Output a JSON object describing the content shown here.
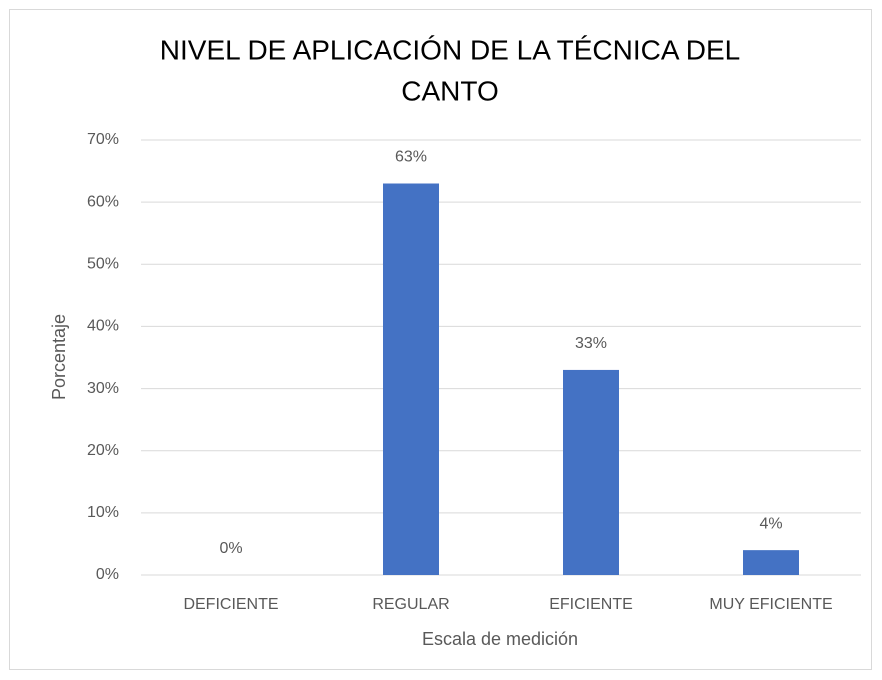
{
  "chart_data": {
    "type": "bar",
    "title": [
      "NIVEL DE APLICACIÓN DE LA TÉCNICA DEL",
      "CANTO"
    ],
    "x_label": "Escala de medición",
    "y_label": "Porcentaje",
    "categories": [
      "DEFICIENTE",
      "REGULAR",
      "EFICIENTE",
      "MUY EFICIENTE"
    ],
    "values": [
      0,
      63,
      33,
      4
    ],
    "value_labels": [
      "0%",
      "63%",
      "33%",
      "4%"
    ],
    "color": "#4472c4",
    "ylim": [
      0,
      70
    ],
    "yticks": [
      {
        "value": 0,
        "label": "0%"
      },
      {
        "value": 10,
        "label": "10%"
      },
      {
        "value": 20,
        "label": "20%"
      },
      {
        "value": 30,
        "label": "30%"
      },
      {
        "value": 40,
        "label": "40%"
      },
      {
        "value": 50,
        "label": "50%"
      },
      {
        "value": 60,
        "label": "60%"
      },
      {
        "value": 70,
        "label": "70%"
      }
    ],
    "grid": true
  }
}
